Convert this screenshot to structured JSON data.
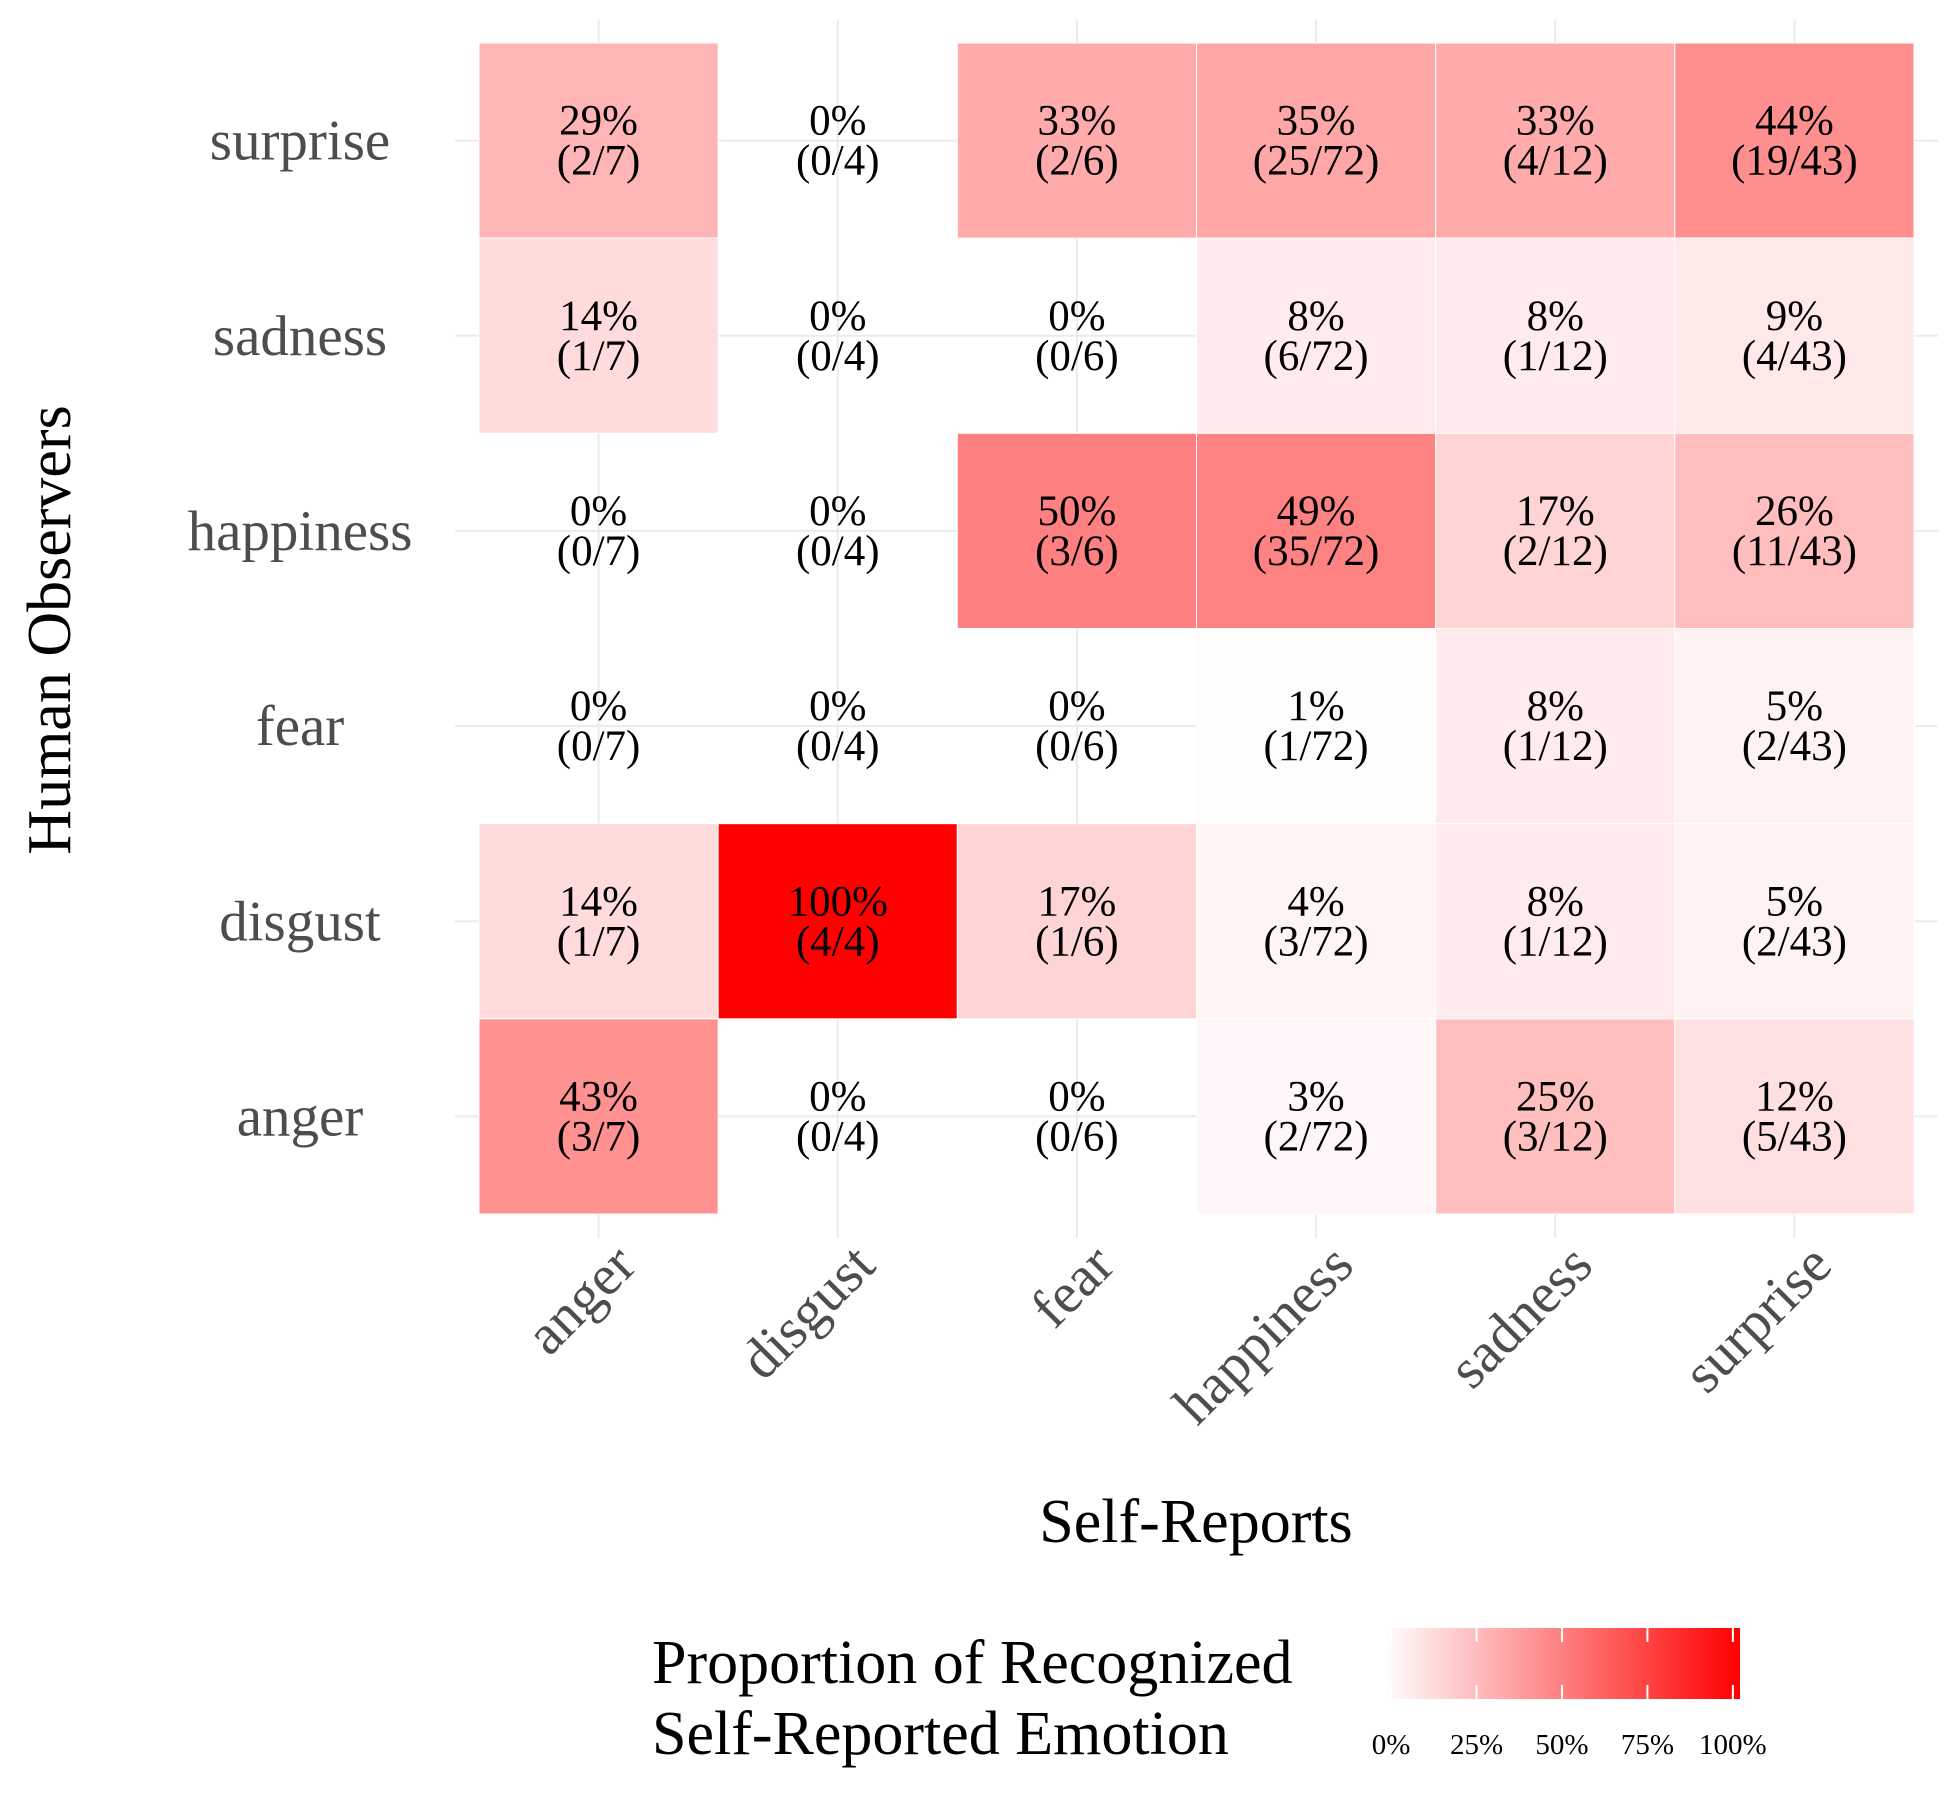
{
  "chart_data": {
    "type": "heatmap",
    "xlabel": "Self-Reports",
    "ylabel": "Human Observers",
    "x_categories": [
      "anger",
      "disgust",
      "fear",
      "happiness",
      "sadness",
      "surprise"
    ],
    "y_categories": [
      "anger",
      "disgust",
      "fear",
      "happiness",
      "sadness",
      "surprise"
    ],
    "cells": [
      {
        "x": "anger",
        "y": "surprise",
        "percent": "29%",
        "count": "(2/7)",
        "value": 0.29
      },
      {
        "x": "disgust",
        "y": "surprise",
        "percent": "0%",
        "count": "(0/4)",
        "value": 0
      },
      {
        "x": "fear",
        "y": "surprise",
        "percent": "33%",
        "count": "(2/6)",
        "value": 0.33
      },
      {
        "x": "happiness",
        "y": "surprise",
        "percent": "35%",
        "count": "(25/72)",
        "value": 0.35
      },
      {
        "x": "sadness",
        "y": "surprise",
        "percent": "33%",
        "count": "(4/12)",
        "value": 0.33
      },
      {
        "x": "surprise",
        "y": "surprise",
        "percent": "44%",
        "count": "(19/43)",
        "value": 0.44
      },
      {
        "x": "anger",
        "y": "sadness",
        "percent": "14%",
        "count": "(1/7)",
        "value": 0.14
      },
      {
        "x": "disgust",
        "y": "sadness",
        "percent": "0%",
        "count": "(0/4)",
        "value": 0
      },
      {
        "x": "fear",
        "y": "sadness",
        "percent": "0%",
        "count": "(0/6)",
        "value": 0
      },
      {
        "x": "happiness",
        "y": "sadness",
        "percent": "8%",
        "count": "(6/72)",
        "value": 0.08
      },
      {
        "x": "sadness",
        "y": "sadness",
        "percent": "8%",
        "count": "(1/12)",
        "value": 0.08
      },
      {
        "x": "surprise",
        "y": "sadness",
        "percent": "9%",
        "count": "(4/43)",
        "value": 0.09
      },
      {
        "x": "anger",
        "y": "happiness",
        "percent": "0%",
        "count": "(0/7)",
        "value": 0
      },
      {
        "x": "disgust",
        "y": "happiness",
        "percent": "0%",
        "count": "(0/4)",
        "value": 0
      },
      {
        "x": "fear",
        "y": "happiness",
        "percent": "50%",
        "count": "(3/6)",
        "value": 0.5
      },
      {
        "x": "happiness",
        "y": "happiness",
        "percent": "49%",
        "count": "(35/72)",
        "value": 0.49
      },
      {
        "x": "sadness",
        "y": "happiness",
        "percent": "17%",
        "count": "(2/12)",
        "value": 0.17
      },
      {
        "x": "surprise",
        "y": "happiness",
        "percent": "26%",
        "count": "(11/43)",
        "value": 0.26
      },
      {
        "x": "anger",
        "y": "fear",
        "percent": "0%",
        "count": "(0/7)",
        "value": 0
      },
      {
        "x": "disgust",
        "y": "fear",
        "percent": "0%",
        "count": "(0/4)",
        "value": 0
      },
      {
        "x": "fear",
        "y": "fear",
        "percent": "0%",
        "count": "(0/6)",
        "value": 0
      },
      {
        "x": "happiness",
        "y": "fear",
        "percent": "1%",
        "count": "(1/72)",
        "value": 0.01
      },
      {
        "x": "sadness",
        "y": "fear",
        "percent": "8%",
        "count": "(1/12)",
        "value": 0.08
      },
      {
        "x": "surprise",
        "y": "fear",
        "percent": "5%",
        "count": "(2/43)",
        "value": 0.05
      },
      {
        "x": "anger",
        "y": "disgust",
        "percent": "14%",
        "count": "(1/7)",
        "value": 0.14
      },
      {
        "x": "disgust",
        "y": "disgust",
        "percent": "100%",
        "count": "(4/4)",
        "value": 1.0
      },
      {
        "x": "fear",
        "y": "disgust",
        "percent": "17%",
        "count": "(1/6)",
        "value": 0.17
      },
      {
        "x": "happiness",
        "y": "disgust",
        "percent": "4%",
        "count": "(3/72)",
        "value": 0.04
      },
      {
        "x": "sadness",
        "y": "disgust",
        "percent": "8%",
        "count": "(1/12)",
        "value": 0.08
      },
      {
        "x": "surprise",
        "y": "disgust",
        "percent": "5%",
        "count": "(2/43)",
        "value": 0.05
      },
      {
        "x": "anger",
        "y": "anger",
        "percent": "43%",
        "count": "(3/7)",
        "value": 0.43
      },
      {
        "x": "disgust",
        "y": "anger",
        "percent": "0%",
        "count": "(0/4)",
        "value": 0
      },
      {
        "x": "fear",
        "y": "anger",
        "percent": "0%",
        "count": "(0/6)",
        "value": 0
      },
      {
        "x": "happiness",
        "y": "anger",
        "percent": "3%",
        "count": "(2/72)",
        "value": 0.03
      },
      {
        "x": "sadness",
        "y": "anger",
        "percent": "25%",
        "count": "(3/12)",
        "value": 0.25
      },
      {
        "x": "surprise",
        "y": "anger",
        "percent": "12%",
        "count": "(5/43)",
        "value": 0.12
      }
    ],
    "color_scale": {
      "low": "#ffffff",
      "high": "#ff0000",
      "range": [
        0,
        1
      ]
    },
    "legend": {
      "title_lines": [
        "Proportion of Recognized",
        "Self-Reported Emotion"
      ],
      "ticks": [
        {
          "label": "0%",
          "value": 0
        },
        {
          "label": "25%",
          "value": 0.25
        },
        {
          "label": "50%",
          "value": 0.5
        },
        {
          "label": "75%",
          "value": 0.75
        },
        {
          "label": "100%",
          "value": 1.0
        }
      ],
      "placement": "bottom"
    },
    "grid": true
  }
}
